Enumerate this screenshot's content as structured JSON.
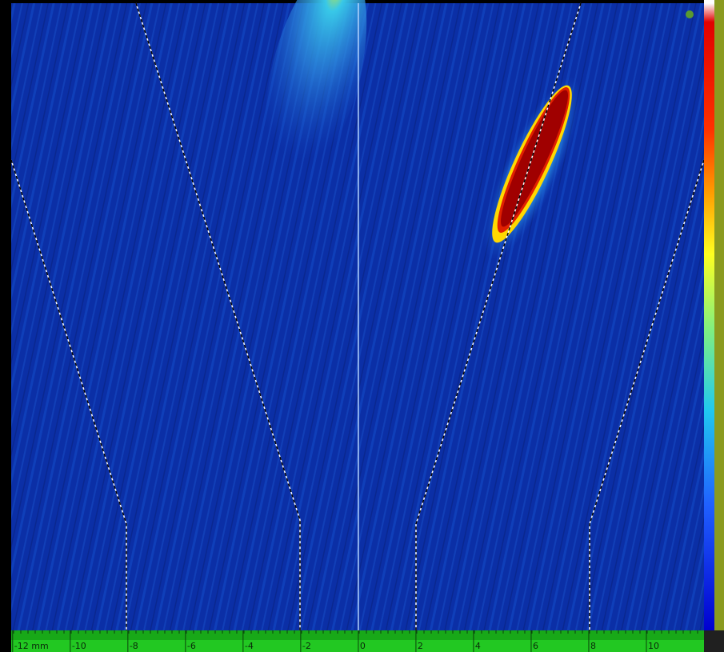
{
  "chart_data": {
    "type": "scan",
    "xlim": [
      -12.05,
      12
    ],
    "xticks": [
      {
        "value": -12,
        "label": "-12 mm"
      },
      -10,
      -8,
      -6,
      -4,
      -2,
      0,
      2,
      4,
      6,
      8,
      10
    ]
  }
}
